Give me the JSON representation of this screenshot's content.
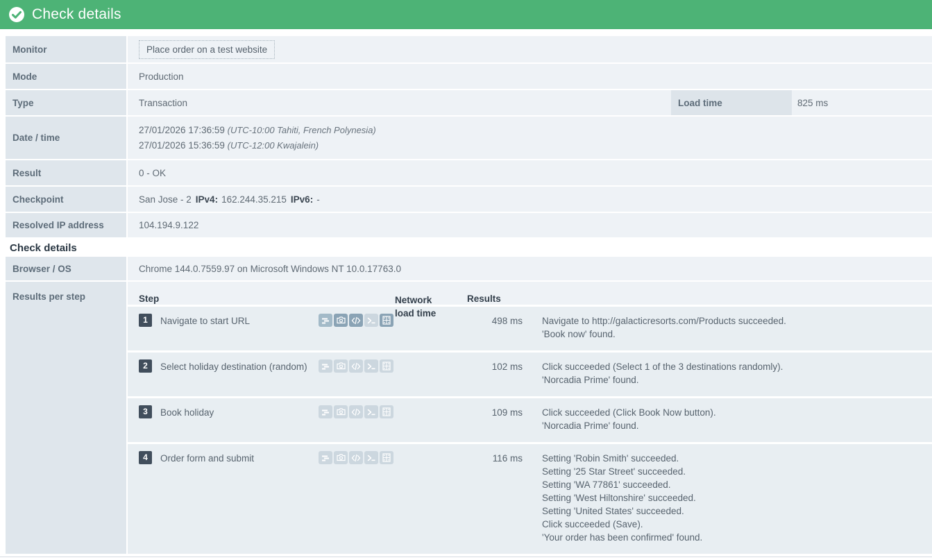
{
  "header": {
    "title": "Check details"
  },
  "details": {
    "monitor": {
      "label": "Monitor",
      "value": "Place order on a test website"
    },
    "mode": {
      "label": "Mode",
      "value": "Production"
    },
    "type": {
      "label": "Type",
      "value": "Transaction",
      "load_time_label": "Load time",
      "load_time_value": "825 ms"
    },
    "datetime": {
      "label": "Date / time",
      "line1": "27/01/2026 17:36:59",
      "line1_tz": "(UTC-10:00 Tahiti, French Polynesia)",
      "line2": "27/01/2026 15:36:59",
      "line2_tz": "(UTC-12:00 Kwajalein)"
    },
    "result": {
      "label": "Result",
      "value": "0 - OK"
    },
    "checkpoint": {
      "label": "Checkpoint",
      "name": "San Jose - 2",
      "ipv4_label": "IPv4:",
      "ipv4_value": "162.244.35.215",
      "ipv6_label": "IPv6:",
      "ipv6_value": "-"
    },
    "resolved_ip": {
      "label": "Resolved IP address",
      "value": "104.194.9.122"
    }
  },
  "section_heading": "Check details",
  "browser_os": {
    "label": "Browser / OS",
    "value": "Chrome 144.0.7559.97 on Microsoft Windows NT 10.0.17763.0"
  },
  "results_per_step": {
    "label": "Results per step",
    "columns": {
      "step": "Step",
      "network_load_time": "Network load time",
      "results": "Results"
    },
    "icons": [
      "waterfall-icon",
      "screenshot-icon",
      "source-code-icon",
      "console-icon",
      "filmstrip-icon"
    ],
    "steps": [
      {
        "number": "1",
        "name": "Navigate to start URL",
        "load_time": "498 ms",
        "icon_states": [
          "ic-med",
          "ic-dark",
          "ic-dark",
          "ic-light",
          "ic-dark"
        ],
        "results": [
          "Navigate to http://galacticresorts.com/Products succeeded.",
          "'Book now' found."
        ]
      },
      {
        "number": "2",
        "name": "Select holiday destination (random)",
        "load_time": "102 ms",
        "icon_states": [
          "ic-light",
          "ic-light",
          "ic-light",
          "ic-light",
          "ic-light"
        ],
        "results": [
          "Click succeeded (Select 1 of the 3 destinations randomly).",
          "'Norcadia Prime' found."
        ]
      },
      {
        "number": "3",
        "name": "Book holiday",
        "load_time": "109 ms",
        "icon_states": [
          "ic-light",
          "ic-light",
          "ic-light",
          "ic-light",
          "ic-light"
        ],
        "results": [
          "Click succeeded (Click Book Now button).",
          "'Norcadia Prime' found."
        ]
      },
      {
        "number": "4",
        "name": "Order form and submit",
        "load_time": "116 ms",
        "icon_states": [
          "ic-light",
          "ic-light",
          "ic-light",
          "ic-light",
          "ic-light"
        ],
        "results": [
          "Setting 'Robin Smith' succeeded.",
          "Setting '25 Star Street' succeeded.",
          "Setting 'WA 77861' succeeded.",
          "Setting 'West Hiltonshire' succeeded.",
          "Setting 'United States' succeeded.",
          "Click succeeded (Save).",
          "'Your order has been confirmed' found."
        ]
      }
    ]
  },
  "colors": {
    "accent_green": "#4db376",
    "label_bg": "#dfe6ec",
    "value_bg": "#eef2f6",
    "step_row_bg": "#e8eef2",
    "badge_bg": "#414e5c",
    "icon_dark": "#8aa3b5",
    "icon_medium": "#a3bac8",
    "icon_light": "#ccd7df"
  }
}
